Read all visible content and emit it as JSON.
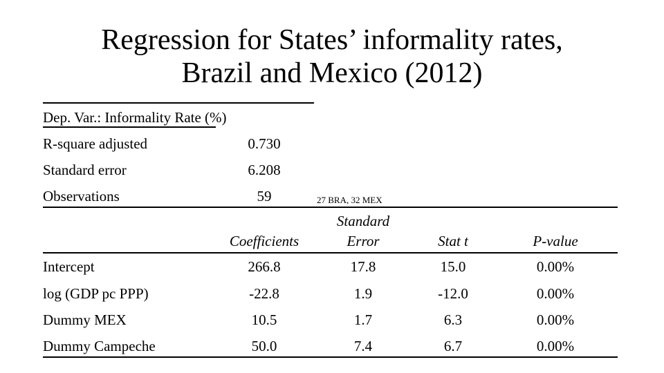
{
  "title": {
    "line1": "Regression for States’ informality rates,",
    "line2": "Brazil and Mexico (2012)"
  },
  "summary": {
    "dep_var": "Dep. Var.: Informality Rate (%)",
    "rows": [
      {
        "label": "R-square adjusted",
        "value": "0.730"
      },
      {
        "label": "Standard error",
        "value": "6.208"
      },
      {
        "label": "Observations",
        "value": "59"
      }
    ],
    "obs_note": "27 BRA, 32 MEX"
  },
  "coef_table": {
    "headers": {
      "coefficients": "Coefficients",
      "std_error_line1": "Standard",
      "std_error_line2": "Error",
      "stat_t": "Stat t",
      "p_value": "P-value"
    },
    "rows": [
      {
        "variable": "Intercept",
        "coef": "266.8",
        "se": "17.8",
        "t": "15.0",
        "p": "0.00%"
      },
      {
        "variable": "log (GDP pc PPP)",
        "coef": "-22.8",
        "se": "1.9",
        "t": "-12.0",
        "p": "0.00%"
      },
      {
        "variable": "Dummy MEX",
        "coef": "10.5",
        "se": "1.7",
        "t": "6.3",
        "p": "0.00%"
      },
      {
        "variable": "Dummy Campeche",
        "coef": "50.0",
        "se": "7.4",
        "t": "6.7",
        "p": "0.00%"
      }
    ]
  }
}
